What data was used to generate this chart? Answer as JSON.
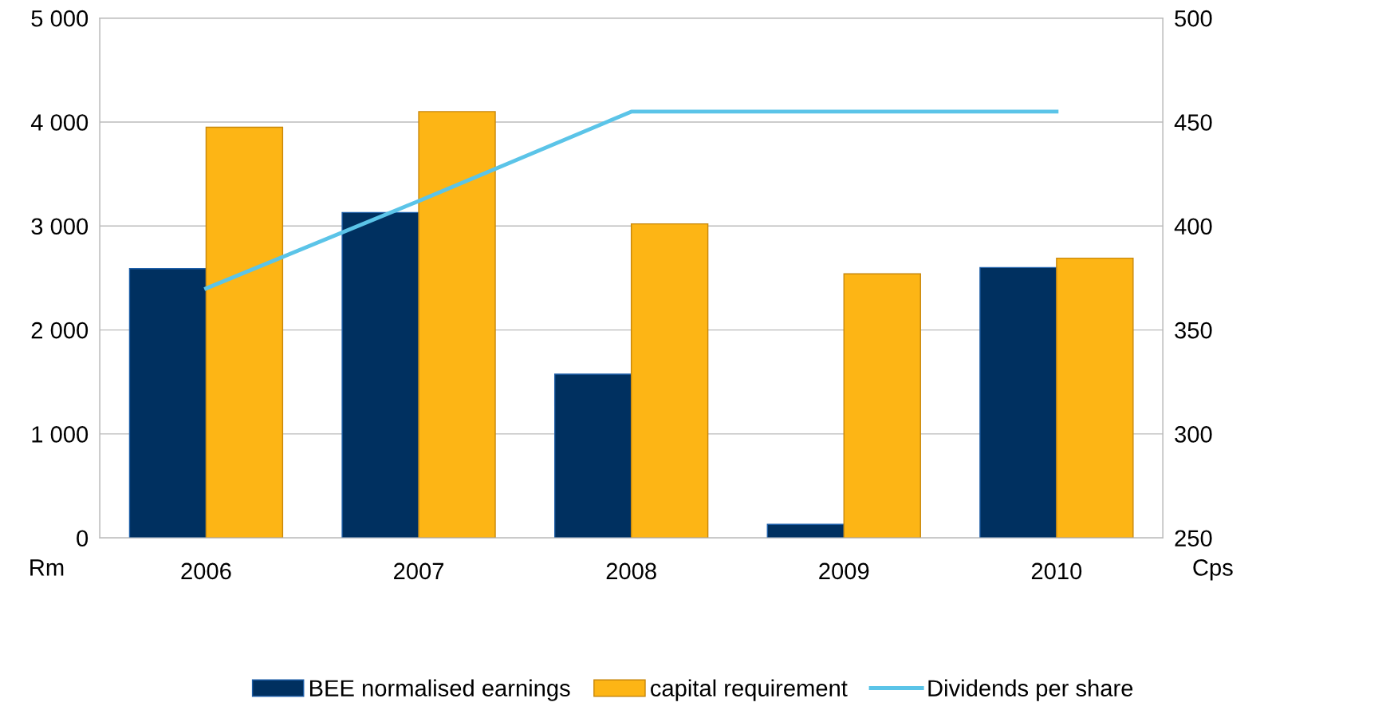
{
  "chart_data": {
    "type": "bar",
    "categories": [
      "2006",
      "2007",
      "2008",
      "2009",
      "2010"
    ],
    "series": [
      {
        "name": "BEE normalised earnings",
        "color": "#003060",
        "values": [
          2590,
          3130,
          1575,
          130,
          2600
        ]
      },
      {
        "name": "capital requirement",
        "color": "#fdb515",
        "values": [
          3950,
          4100,
          3020,
          2540,
          2690
        ]
      },
      {
        "name": "Dividends per share",
        "color": "#5bc4e8",
        "type": "line",
        "axis": "y2",
        "values": [
          370,
          412,
          455,
          455,
          455
        ]
      }
    ],
    "ylabel": "Rm",
    "y2label": "Cps",
    "ylim": [
      0,
      5000
    ],
    "yticks": [
      {
        "value": 0,
        "label": "0"
      },
      {
        "value": 1000,
        "label": "1 000"
      },
      {
        "value": 2000,
        "label": "2 000"
      },
      {
        "value": 3000,
        "label": "3 000"
      },
      {
        "value": 4000,
        "label": "4 000"
      },
      {
        "value": 5000,
        "label": "5 000"
      }
    ],
    "y2lim": [
      250,
      500
    ],
    "y2ticks": [
      250,
      300,
      350,
      400,
      450,
      500
    ],
    "grid": "y",
    "legend": "bottom",
    "marker": "none",
    "line_style": "solid"
  }
}
